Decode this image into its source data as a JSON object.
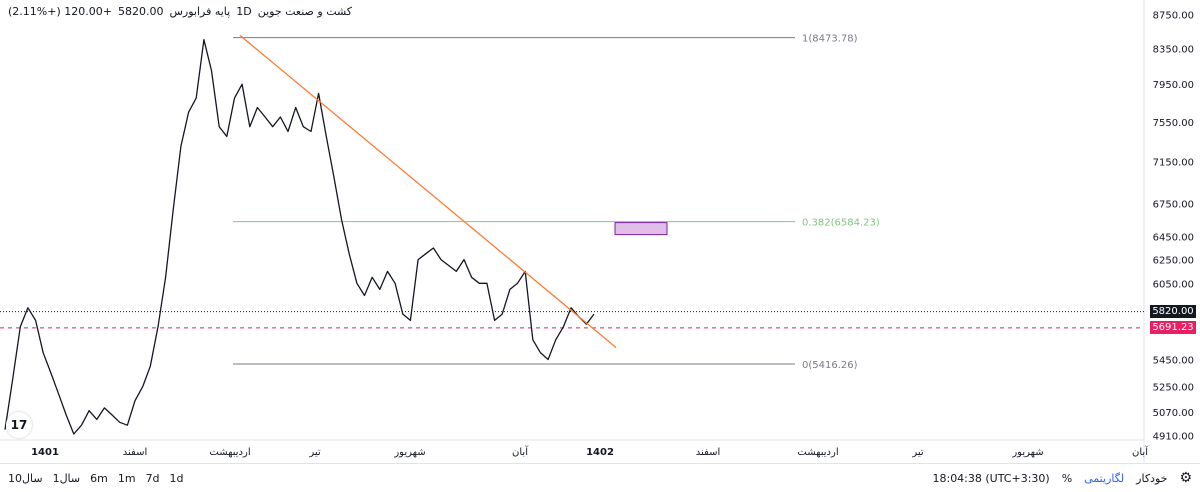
{
  "header": {
    "symbol": "کشت و صنعت جوین",
    "interval": "1D",
    "name": "پایه فرابورس",
    "price": "5820.00",
    "change": "+120.00 (+2.11%)"
  },
  "chart_data": {
    "type": "line",
    "title": "",
    "y_ticks": [
      "8750.00",
      "8350.00",
      "7950.00",
      "7550.00",
      "7150.00",
      "6750.00",
      "6450.00",
      "6250.00",
      "6050.00",
      "5450.00",
      "5250.00",
      "5070.00",
      "4910.00"
    ],
    "ylim": [
      4880,
      8850
    ],
    "y_scale": "log",
    "x_labels": [
      "1401",
      "اسفند",
      "اردیبهشت",
      "تیر",
      "شهریور",
      "آبان",
      "1402",
      "اسفند",
      "اردیبهشت",
      "تیر",
      "شهریور",
      "آبان"
    ],
    "series": [
      {
        "values": [
          4950,
          5300,
          5700,
          5850,
          5750,
          5500,
          5350,
          5200,
          5050,
          4920,
          4980,
          5080,
          5020,
          5100,
          5050,
          5000,
          4980,
          5150,
          5250,
          5400,
          5700,
          6100,
          6700,
          7300,
          7650,
          7800,
          8450,
          8100,
          7500,
          7400,
          7800,
          7950,
          7500,
          7700,
          7600,
          7500,
          7600,
          7450,
          7700,
          7500,
          7450,
          7850,
          7400,
          7000,
          6600,
          6300,
          6050,
          5950,
          6100,
          6000,
          6150,
          6050,
          5800,
          5750,
          6250,
          6300,
          6350,
          6250,
          6200,
          6150,
          6250,
          6100,
          6050,
          6050,
          5750,
          5800,
          6000,
          6050,
          6150,
          5600,
          5500,
          5450,
          5600,
          5700,
          5850,
          5780,
          5720,
          5800
        ]
      }
    ],
    "horizontal_levels": [
      {
        "label": "1(8473.78)",
        "value": 8473.78,
        "color": "#787b86"
      },
      {
        "label": "0.382(6584.23)",
        "value": 6584.23,
        "color": "#81c784"
      },
      {
        "label": "0(5416.26)",
        "value": 5416.26,
        "color": "#787b86"
      }
    ],
    "current_price": {
      "label": "5820.00",
      "value": 5820.0,
      "color": "#131722"
    },
    "dashed_level": {
      "label": "5691.23",
      "value": 5691.23,
      "color": "#e91e63"
    },
    "trendline_color": "#ff7a33"
  },
  "footer": {
    "periods": [
      "10سال",
      "1سال",
      "6m",
      "1m",
      "7d",
      "1d"
    ],
    "time": "18:04:38 (UTC+3:30)",
    "percent": "%",
    "log": "لگاریتمی",
    "auto": "خودکار"
  },
  "logo": "17"
}
